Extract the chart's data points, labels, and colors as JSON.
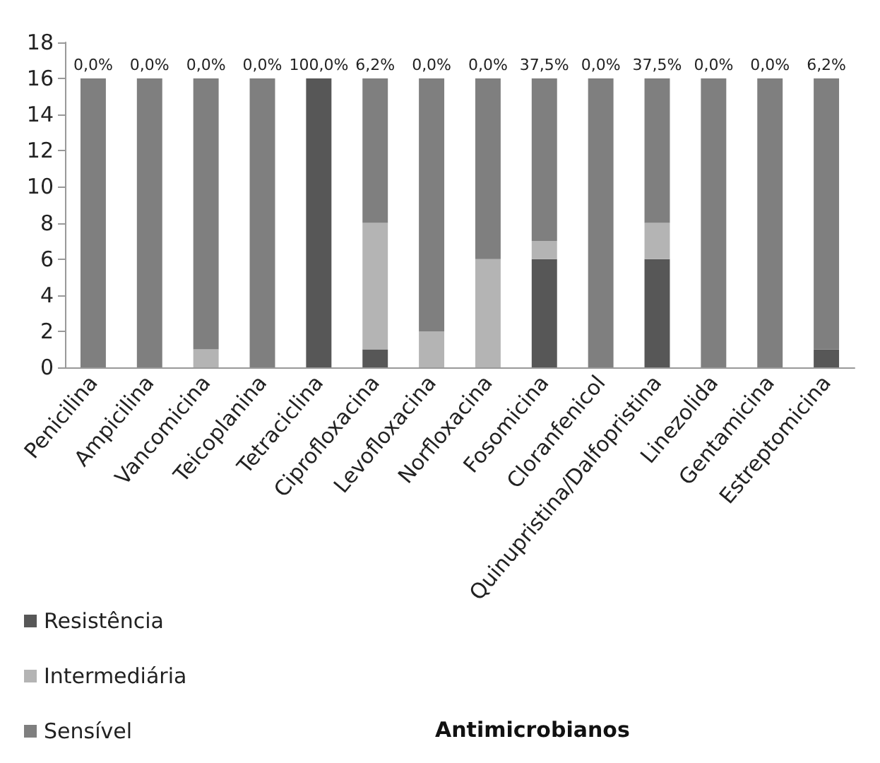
{
  "chart_data": {
    "type": "bar",
    "stacked": true,
    "categories": [
      "Penicilina",
      "Ampicilina",
      "Vancomicina",
      "Teicoplanina",
      "Tetraciclina",
      "Ciprofloxacina",
      "Levofloxacina",
      "Norfloxacina",
      "Fosomicina",
      "Cloranfenicol",
      "Quinupristina/Dalfopristina",
      "Linezolida",
      "Gentamicina",
      "Estreptomicina"
    ],
    "series": [
      {
        "name": "Resistência",
        "color": "#575757",
        "values": [
          0,
          0,
          0,
          0,
          16,
          1,
          0,
          0,
          6,
          0,
          6,
          0,
          0,
          1
        ]
      },
      {
        "name": "Intermediária",
        "color": "#b4b4b4",
        "values": [
          0,
          0,
          1,
          0,
          0,
          7,
          2,
          6,
          1,
          0,
          2,
          0,
          0,
          0
        ]
      },
      {
        "name": "Sensível",
        "color": "#7f7f7f",
        "values": [
          16,
          16,
          15,
          16,
          0,
          8,
          14,
          10,
          9,
          16,
          8,
          16,
          16,
          15
        ]
      }
    ],
    "annotations": [
      {
        "text": "0,0%",
        "x": "Penicilina",
        "y": 16
      },
      {
        "text": "0,0%",
        "x": "Ampicilina",
        "y": 16
      },
      {
        "text": "0,0%",
        "x": "Vancomicina",
        "y": 16
      },
      {
        "text": "0,0%",
        "x": "Teicoplanina",
        "y": 16
      },
      {
        "text": "100,0%",
        "x": "Tetraciclina",
        "y": 16
      },
      {
        "text": "6,2%",
        "x": "Ciprofloxacina",
        "y": 16
      },
      {
        "text": "0,0%",
        "x": "Levofloxacina",
        "y": 16
      },
      {
        "text": "0,0%",
        "x": "Norfloxacina",
        "y": 16
      },
      {
        "text": "37,5%",
        "x": "Fosomicina",
        "y": 16
      },
      {
        "text": "0,0%",
        "x": "Cloranfenicol",
        "y": 16
      },
      {
        "text": "37,5%",
        "x": "Quinupristina/Dalfopristina",
        "y": 16
      },
      {
        "text": "0,0%",
        "x": "Linezolida",
        "y": 16
      },
      {
        "text": "0,0%",
        "x": "Gentamicina",
        "y": 16
      },
      {
        "text": "6,2%",
        "x": "Estreptomicina",
        "y": 16
      },
      "Antimicrobianos"
    ],
    "ylim": [
      0,
      18
    ],
    "yticks": [
      0,
      2,
      4,
      6,
      8,
      10,
      12,
      14,
      16,
      18
    ],
    "grid": false,
    "legend": "bottom left"
  }
}
